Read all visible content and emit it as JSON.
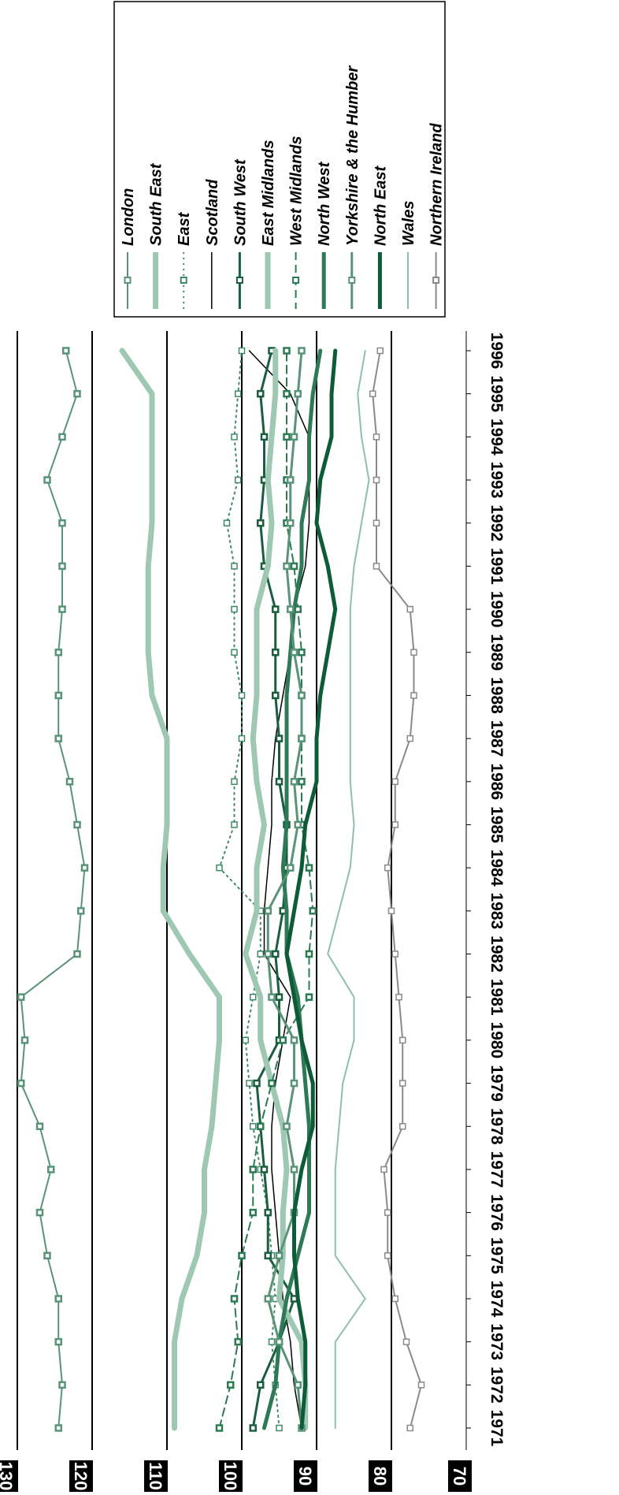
{
  "chart_data": {
    "type": "line",
    "orientation": "rotated-90-clockwise",
    "title": "",
    "xlabel": "",
    "ylabel": "",
    "x": [
      "1971",
      "1972",
      "1973",
      "1974",
      "1975",
      "1976",
      "1977",
      "1978",
      "1979",
      "1980",
      "1981",
      "1982",
      "1983",
      "1984",
      "1985",
      "1986",
      "1987",
      "1988",
      "1989",
      "1990",
      "1991",
      "1992",
      "1993",
      "1994",
      "1995",
      "1996"
    ],
    "ylim": [
      70,
      130
    ],
    "yticks": [
      70,
      80,
      90,
      100,
      110,
      120,
      130
    ],
    "grid": "horizontal at y=80,90,100,110,120,130",
    "legend_position": "top-right",
    "series": [
      {
        "name": "London",
        "color": "#5a9478",
        "marker": "square",
        "width": 2,
        "dash": "none",
        "values": [
          124.5,
          124.0,
          124.5,
          124.5,
          126.0,
          127.0,
          125.5,
          127.0,
          129.5,
          129.0,
          129.5,
          122.0,
          121.5,
          121.0,
          122.0,
          123.0,
          124.5,
          124.5,
          124.5,
          124.0,
          124.0,
          124.0,
          126.0,
          124.0,
          122.0,
          123.5
        ]
      },
      {
        "name": "South East",
        "color": "#9ec8b2",
        "marker": "none",
        "width": 7,
        "dash": "none",
        "values": [
          109.0,
          109.0,
          109.0,
          108.0,
          106.0,
          105.0,
          105.0,
          104.0,
          103.5,
          103.0,
          103.0,
          107.0,
          110.5,
          110.5,
          110.0,
          110.0,
          110.0,
          112.0,
          112.5,
          112.5,
          112.5,
          112.0,
          112.0,
          112.0,
          112.0,
          116.0
        ]
      },
      {
        "name": "East",
        "color": "#3f8a66",
        "marker": "square-hollow",
        "width": 2,
        "dash": "dot",
        "values": [
          95.0,
          95.5,
          96.0,
          95.5,
          96.0,
          96.5,
          97.5,
          98.5,
          99.0,
          99.5,
          98.5,
          97.5,
          97.5,
          103.0,
          101.0,
          101.0,
          100.0,
          100.0,
          101.0,
          101.0,
          101.0,
          102.0,
          100.5,
          101.0,
          100.5,
          100.0
        ]
      },
      {
        "name": "Scotland",
        "color": "#000000",
        "marker": "none",
        "width": 1.5,
        "dash": "none",
        "values": [
          92.0,
          93.0,
          93.5,
          94.5,
          95.0,
          95.5,
          96.0,
          96.0,
          95.5,
          94.5,
          93.5,
          97.0,
          97.0,
          96.5,
          96.0,
          96.0,
          95.5,
          94.5,
          93.5,
          93.0,
          91.5,
          91.0,
          91.0,
          91.0,
          93.5,
          99.0
        ]
      },
      {
        "name": "South West",
        "color": "#1b5e3f",
        "marker": "square",
        "width": 3,
        "dash": "none",
        "values": [
          98.5,
          97.5,
          95.0,
          93.0,
          96.5,
          96.5,
          97.0,
          97.5,
          98.0,
          95.0,
          95.0,
          95.5,
          94.5,
          94.0,
          94.0,
          95.0,
          95.0,
          95.5,
          95.5,
          95.5,
          97.0,
          97.5,
          97.0,
          97.0,
          97.5,
          96.0
        ]
      },
      {
        "name": "East Midlands",
        "color": "#9ec8b2",
        "marker": "none",
        "width": 7,
        "dash": "none",
        "values": [
          91.5,
          91.5,
          92.0,
          95.0,
          94.5,
          94.5,
          94.0,
          94.5,
          96.0,
          97.5,
          97.5,
          99.5,
          98.0,
          98.0,
          97.0,
          98.0,
          98.5,
          98.0,
          98.0,
          98.0,
          96.5,
          96.0,
          96.5,
          96.0,
          95.5,
          95.5
        ]
      },
      {
        "name": "West Midlands",
        "color": "#2a7a52",
        "marker": "square",
        "width": 2,
        "dash": "dash",
        "values": [
          103.0,
          101.5,
          100.5,
          101.0,
          100.0,
          98.5,
          98.5,
          97.5,
          96.0,
          94.5,
          91.0,
          91.0,
          90.5,
          91.0,
          92.0,
          92.0,
          92.0,
          92.0,
          92.0,
          92.5,
          93.0,
          94.0,
          94.0,
          94.0,
          94.0,
          94.0
        ]
      },
      {
        "name": "North West",
        "color": "#2e7a56",
        "marker": "none",
        "width": 5,
        "dash": "none",
        "values": [
          97.0,
          95.5,
          95.0,
          94.0,
          92.5,
          91.0,
          91.0,
          91.0,
          91.5,
          92.0,
          92.5,
          94.0,
          94.0,
          94.5,
          94.0,
          94.0,
          94.0,
          94.0,
          93.5,
          93.0,
          92.0,
          92.0,
          91.0,
          91.0,
          90.5,
          89.5
        ]
      },
      {
        "name": "Yorkshire & the Humber",
        "color": "#5a9478",
        "marker": "square",
        "width": 3,
        "dash": "none",
        "values": [
          92.0,
          92.5,
          95.0,
          96.5,
          95.0,
          93.0,
          93.0,
          94.0,
          93.0,
          93.0,
          96.0,
          96.5,
          96.5,
          93.5,
          92.5,
          93.0,
          92.0,
          92.0,
          93.0,
          93.5,
          94.0,
          93.5,
          93.5,
          93.0,
          92.5,
          92.0
        ]
      },
      {
        "name": "North East",
        "color": "#0d5c37",
        "marker": "none",
        "width": 5,
        "dash": "none",
        "values": [
          92.0,
          91.5,
          91.5,
          92.5,
          93.0,
          93.0,
          92.0,
          90.5,
          90.5,
          92.0,
          93.0,
          94.0,
          93.0,
          92.0,
          91.5,
          90.0,
          90.0,
          89.5,
          88.5,
          87.5,
          88.5,
          90.0,
          89.5,
          88.0,
          88.0,
          87.5
        ]
      },
      {
        "name": "Wales",
        "color": "#8ec0a8",
        "marker": "none",
        "width": 2,
        "dash": "none",
        "values": [
          87.5,
          87.5,
          87.5,
          83.5,
          87.5,
          87.5,
          87.5,
          87.0,
          86.5,
          85.0,
          85.0,
          88.5,
          87.0,
          85.5,
          85.0,
          85.5,
          85.5,
          85.5,
          85.5,
          85.5,
          85.0,
          84.0,
          83.0,
          84.0,
          84.5,
          83.5
        ]
      },
      {
        "name": "Northern Ireland",
        "color": "#8a8a8a",
        "marker": "square-hollow",
        "width": 2,
        "dash": "none",
        "values": [
          77.5,
          76.0,
          78.0,
          79.5,
          80.5,
          80.5,
          81.0,
          78.5,
          78.5,
          78.5,
          79.0,
          79.5,
          80.0,
          80.5,
          79.5,
          79.5,
          77.5,
          77.0,
          77.0,
          77.5,
          82.0,
          82.0,
          82.0,
          82.0,
          82.5,
          81.5
        ]
      }
    ]
  }
}
